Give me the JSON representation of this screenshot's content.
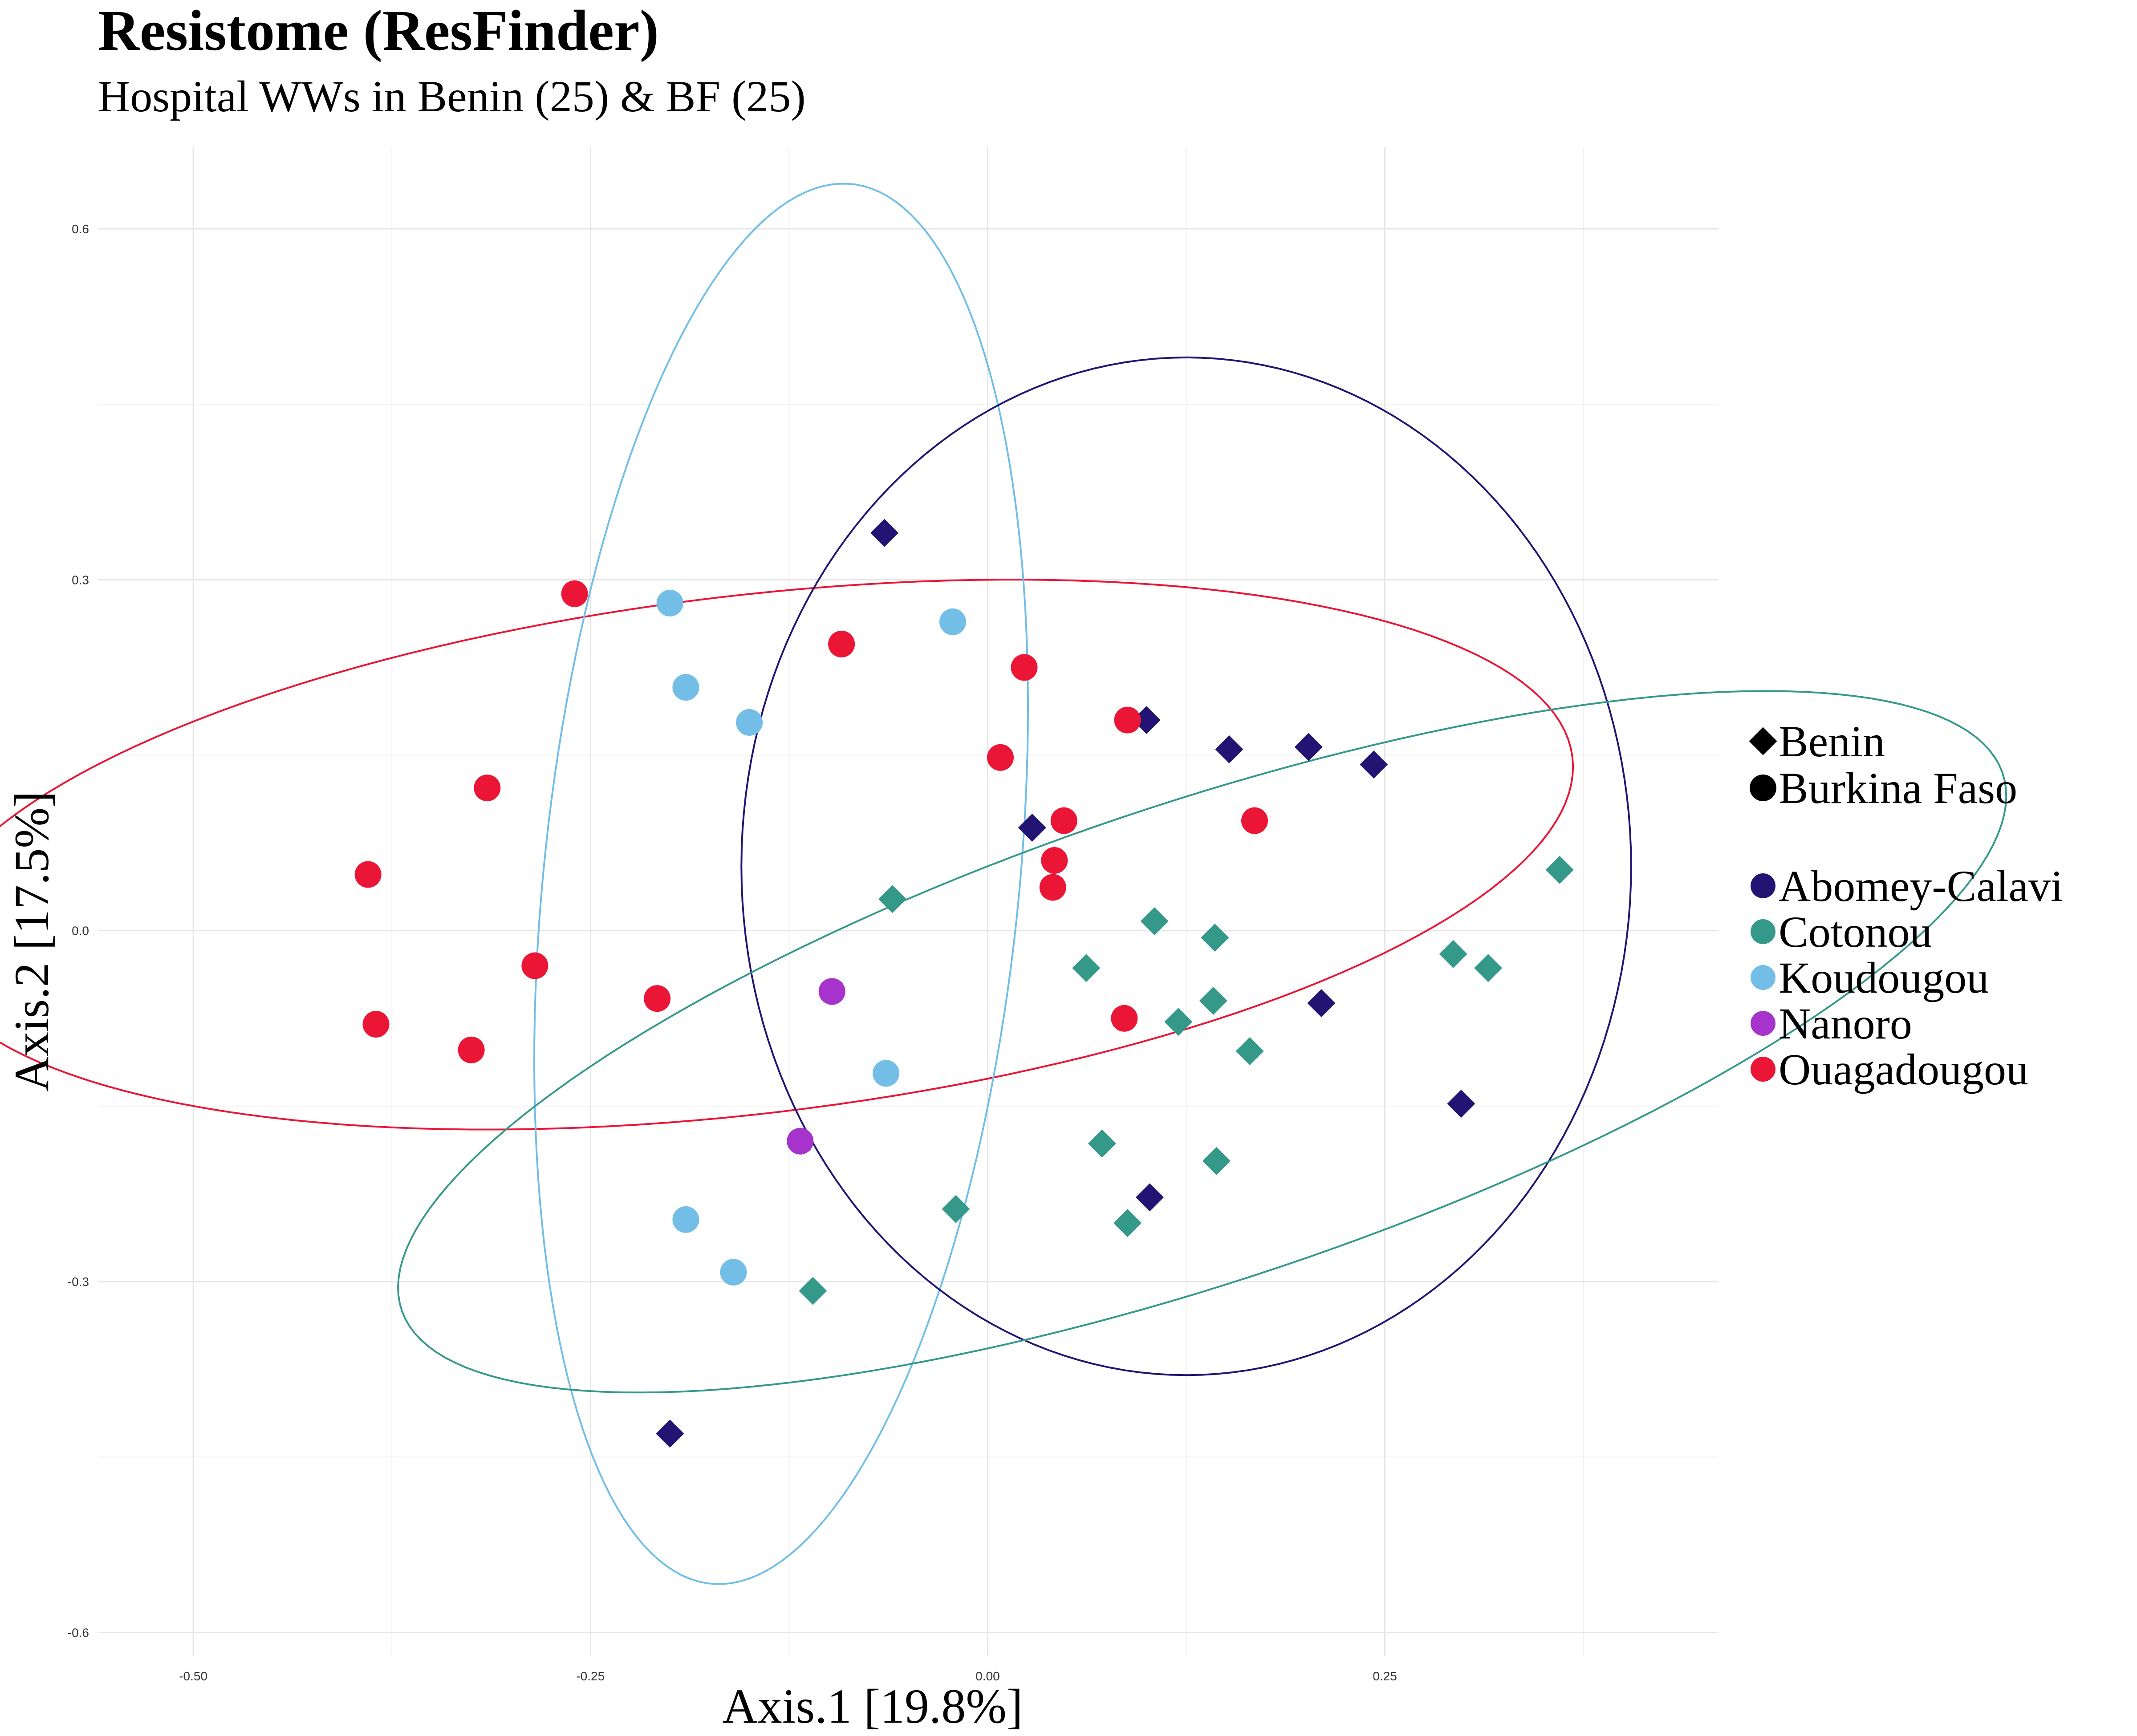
{
  "chart_data": {
    "type": "scatter",
    "title": "Resistome (ResFinder)",
    "subtitle": "Hospital WWs in Benin (25) & BF (25)",
    "xlabel": "Axis.1   [19.8%]",
    "ylabel": "Axis.2   [17.5%]",
    "xlim": [
      -0.56,
      0.46
    ],
    "ylim": [
      -0.62,
      0.67
    ],
    "x_ticks": [
      "-0.50",
      "-0.25",
      "0.00",
      "0.25"
    ],
    "x_tick_values": [
      -0.5,
      -0.25,
      0.0,
      0.25
    ],
    "y_ticks": [
      "0.6",
      "0.3",
      "0.0",
      "-0.3",
      "-0.6"
    ],
    "y_tick_values": [
      0.6,
      0.3,
      0.0,
      -0.3,
      -0.6
    ],
    "grid": true,
    "legend_position": "right",
    "shape_legend": [
      {
        "label": "Benin",
        "shape": "diamond"
      },
      {
        "label": "Burkina Faso",
        "shape": "circle"
      }
    ],
    "color_legend": [
      {
        "label": "Abomey-Calavi",
        "color": "#231473"
      },
      {
        "label": "Cotonou",
        "color": "#35998A"
      },
      {
        "label": "Koudougou",
        "color": "#72BEE6"
      },
      {
        "label": "Nanoro",
        "color": "#A633CC"
      },
      {
        "label": "Ouagadougou",
        "color": "#EB1536"
      }
    ],
    "ellipses": [
      {
        "group": "Ouagadougou",
        "color": "#EB1536",
        "cx": -0.15,
        "cy": 0.065,
        "a": 0.525,
        "b": 0.22,
        "angle_deg": 10
      },
      {
        "group": "Koudougou",
        "color": "#72BEE6",
        "cx": -0.13,
        "cy": 0.04,
        "a": 0.6,
        "b": 0.15,
        "angle_deg": 86
      },
      {
        "group": "Abomey-Calavi",
        "color": "#231473",
        "cx": 0.125,
        "cy": 0.055,
        "a": 0.435,
        "b": 0.28,
        "angle_deg": 90
      },
      {
        "group": "Cotonou",
        "color": "#35998A",
        "cx": 0.135,
        "cy": -0.095,
        "a": 0.555,
        "b": 0.195,
        "angle_deg": 26
      }
    ],
    "series": [
      {
        "name": "Abomey-Calavi",
        "shape": "diamond",
        "color": "#231473",
        "points": [
          [
            -0.065,
            0.34
          ],
          [
            0.1,
            0.18
          ],
          [
            0.152,
            0.155
          ],
          [
            0.202,
            0.157
          ],
          [
            0.243,
            0.142
          ],
          [
            0.028,
            0.088
          ],
          [
            0.21,
            -0.062
          ],
          [
            0.298,
            -0.148
          ],
          [
            0.102,
            -0.228
          ],
          [
            -0.2,
            -0.43
          ]
        ]
      },
      {
        "name": "Cotonou",
        "shape": "diamond",
        "color": "#35998A",
        "points": [
          [
            0.36,
            0.052
          ],
          [
            -0.06,
            0.027
          ],
          [
            0.105,
            0.008
          ],
          [
            0.143,
            -0.006
          ],
          [
            0.293,
            -0.02
          ],
          [
            0.315,
            -0.032
          ],
          [
            0.062,
            -0.032
          ],
          [
            0.142,
            -0.06
          ],
          [
            0.12,
            -0.078
          ],
          [
            0.165,
            -0.103
          ],
          [
            0.072,
            -0.182
          ],
          [
            0.144,
            -0.197
          ],
          [
            0.088,
            -0.25
          ],
          [
            -0.02,
            -0.238
          ],
          [
            -0.11,
            -0.308
          ]
        ]
      },
      {
        "name": "Koudougou",
        "shape": "circle",
        "color": "#72BEE6",
        "points": [
          [
            -0.2,
            0.28
          ],
          [
            -0.022,
            0.264
          ],
          [
            -0.19,
            0.208
          ],
          [
            -0.15,
            0.178
          ],
          [
            -0.064,
            -0.122
          ],
          [
            -0.19,
            -0.247
          ],
          [
            -0.16,
            -0.292
          ]
        ]
      },
      {
        "name": "Nanoro",
        "shape": "circle",
        "color": "#A633CC",
        "points": [
          [
            -0.098,
            -0.052
          ],
          [
            -0.118,
            -0.18
          ]
        ]
      },
      {
        "name": "Ouagadougou",
        "shape": "circle",
        "color": "#EB1536",
        "points": [
          [
            -0.26,
            0.288
          ],
          [
            -0.092,
            0.245
          ],
          [
            0.023,
            0.225
          ],
          [
            0.088,
            0.18
          ],
          [
            0.008,
            0.148
          ],
          [
            -0.315,
            0.122
          ],
          [
            0.168,
            0.094
          ],
          [
            0.048,
            0.094
          ],
          [
            0.042,
            0.06
          ],
          [
            0.041,
            0.037
          ],
          [
            -0.39,
            0.048
          ],
          [
            -0.285,
            -0.03
          ],
          [
            -0.208,
            -0.058
          ],
          [
            0.086,
            -0.075
          ],
          [
            -0.385,
            -0.08
          ],
          [
            -0.325,
            -0.102
          ]
        ]
      }
    ]
  }
}
